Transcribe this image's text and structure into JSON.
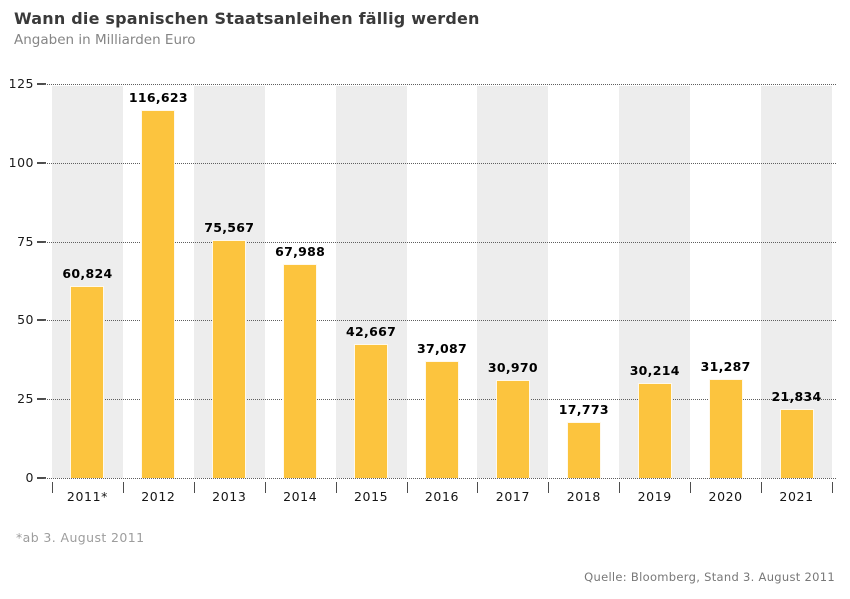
{
  "page": {
    "title": "Wann die spanischen Staatsanleihen fällig werden",
    "subtitle": "Angaben in Milliarden Euro",
    "footnote": "*ab 3. August 2011",
    "source": "Quelle: Bloomberg, Stand 3. August 2011"
  },
  "chart_data": {
    "type": "bar",
    "title": "Wann die spanischen Staatsanleihen fällig werden",
    "subtitle": "Angaben in Milliarden Euro",
    "unit": "Milliarden Euro",
    "categories": [
      "2011*",
      "2012",
      "2013",
      "2014",
      "2015",
      "2016",
      "2017",
      "2018",
      "2019",
      "2020",
      "2021"
    ],
    "values": [
      60.824,
      116.623,
      75.567,
      67.988,
      42.667,
      37.087,
      30.97,
      17.773,
      30.214,
      31.287,
      21.834
    ],
    "value_labels": [
      "60,824",
      "116,623",
      "75,567",
      "67,988",
      "42,667",
      "37,087",
      "30,970",
      "17,773",
      "30,214",
      "31,287",
      "21,834"
    ],
    "ylim": [
      0,
      125
    ],
    "yticks": [
      0,
      25,
      50,
      75,
      100,
      125
    ],
    "ytick_labels": [
      "0",
      "25",
      "50",
      "75",
      "100",
      "125"
    ],
    "xlabel": "",
    "ylabel": "",
    "legend": "none",
    "grid": "horizontal-dotted",
    "background_bands": "alternating gray band behind every odd column (2011, 2013, 2015, 2017, 2019, 2021)",
    "footnote": "*ab 3. August 2011",
    "source": "Quelle: Bloomberg, Stand 3. August 2011",
    "colors": {
      "bar": "#FCC43E",
      "band": "#EDEDED",
      "grid": "#5F5F5F",
      "axis": "#4D4D4D",
      "title": "#3A3A3A",
      "subtitle": "#858585",
      "value_label": "#000000",
      "footnote": "#9D9D9D",
      "source": "#787878"
    }
  }
}
